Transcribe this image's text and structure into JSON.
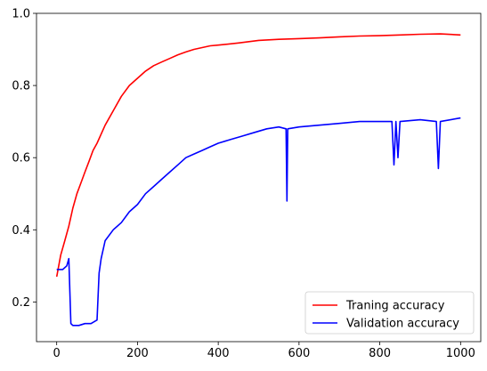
{
  "chart_data": {
    "type": "line",
    "title": "",
    "xlabel": "",
    "ylabel": "",
    "xlim": [
      -50,
      1050
    ],
    "ylim": [
      0.09,
      1.0
    ],
    "xticks": [
      0,
      200,
      400,
      600,
      800,
      1000
    ],
    "yticks": [
      0.2,
      0.4,
      0.6,
      0.8,
      1.0
    ],
    "xtick_labels": [
      "0",
      "200",
      "400",
      "600",
      "800",
      "1000"
    ],
    "ytick_labels": [
      "0.2",
      "0.4",
      "0.6",
      "0.8",
      "1.0"
    ],
    "grid": false,
    "legend_position": "lower-right",
    "series": [
      {
        "name": "Traning accuracy",
        "color": "#ff0000",
        "x": [
          0,
          10,
          20,
          30,
          40,
          50,
          60,
          70,
          80,
          90,
          100,
          120,
          140,
          160,
          180,
          200,
          220,
          240,
          260,
          280,
          300,
          320,
          340,
          360,
          380,
          400,
          450,
          500,
          550,
          600,
          650,
          700,
          750,
          800,
          850,
          900,
          950,
          1000
        ],
        "values": [
          0.27,
          0.33,
          0.37,
          0.41,
          0.46,
          0.5,
          0.53,
          0.56,
          0.59,
          0.62,
          0.64,
          0.69,
          0.73,
          0.77,
          0.8,
          0.82,
          0.84,
          0.855,
          0.865,
          0.875,
          0.885,
          0.893,
          0.9,
          0.905,
          0.91,
          0.912,
          0.918,
          0.925,
          0.928,
          0.93,
          0.932,
          0.935,
          0.937,
          0.938,
          0.94,
          0.942,
          0.943,
          0.94
        ]
      },
      {
        "name": "Validation accuracy",
        "color": "#0000ff",
        "x": [
          0,
          15,
          25,
          30,
          35,
          40,
          55,
          70,
          85,
          100,
          105,
          110,
          120,
          140,
          160,
          180,
          200,
          220,
          240,
          260,
          280,
          300,
          320,
          340,
          360,
          380,
          400,
          430,
          460,
          490,
          520,
          550,
          568,
          570,
          572,
          600,
          650,
          700,
          750,
          800,
          830,
          835,
          840,
          845,
          850,
          900,
          940,
          945,
          950,
          1000
        ],
        "values": [
          0.29,
          0.29,
          0.3,
          0.32,
          0.14,
          0.135,
          0.135,
          0.14,
          0.14,
          0.15,
          0.28,
          0.32,
          0.37,
          0.4,
          0.42,
          0.45,
          0.47,
          0.5,
          0.52,
          0.54,
          0.56,
          0.58,
          0.6,
          0.61,
          0.62,
          0.63,
          0.64,
          0.65,
          0.66,
          0.67,
          0.68,
          0.685,
          0.68,
          0.48,
          0.68,
          0.685,
          0.69,
          0.695,
          0.7,
          0.7,
          0.7,
          0.58,
          0.7,
          0.6,
          0.7,
          0.705,
          0.7,
          0.57,
          0.7,
          0.71
        ]
      }
    ]
  }
}
